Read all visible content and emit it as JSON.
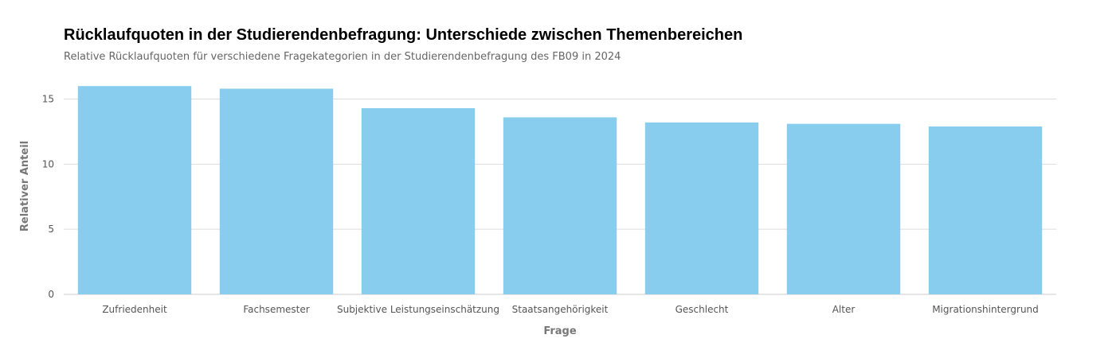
{
  "colors": {
    "bar": "#89CDEE",
    "grid": "#DDDDDD"
  },
  "chart_data": {
    "type": "bar",
    "title": "Rücklaufquoten in der Studierendenbefragung: Unterschiede zwischen Themenbereichen",
    "subtitle": "Relative Rücklaufquoten für verschiedene Fragekategorien in der Studierendenbefragung des FB09 in 2024",
    "xlabel": "Frage",
    "ylabel": "Relativer Anteil",
    "categories": [
      "Zufriedenheit",
      "Fachsemester",
      "Subjektive Leistungseinschätzung",
      "Staatsangehörigkeit",
      "Geschlecht",
      "Alter",
      "Migrationshintergrund"
    ],
    "values": [
      16.0,
      15.8,
      14.3,
      13.6,
      13.2,
      13.1,
      12.9
    ],
    "ylim": [
      0,
      16.5
    ],
    "yticks": [
      0,
      5,
      10,
      15
    ],
    "grid": true,
    "legend": "none"
  }
}
